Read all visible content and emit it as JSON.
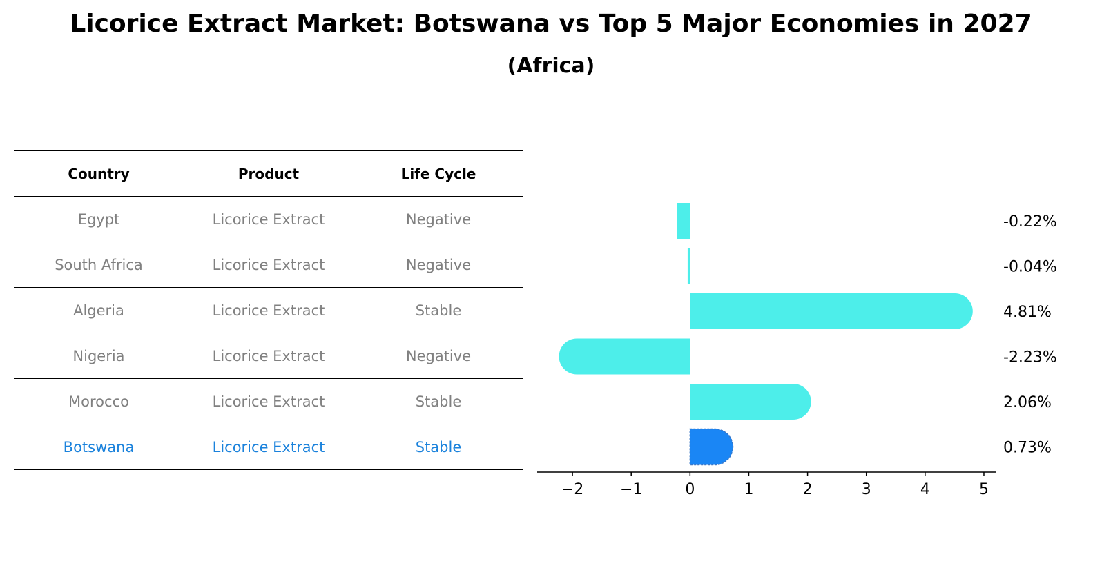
{
  "title": "Licorice Extract Market: Botswana vs Top 5 Major Economies in 2027",
  "subtitle": "(Africa)",
  "table": {
    "headers": [
      "Country",
      "Product",
      "Life Cycle"
    ],
    "rows": [
      [
        "Egypt",
        "Licorice Extract",
        "Negative"
      ],
      [
        "South Africa",
        "Licorice Extract",
        "Negative"
      ],
      [
        "Algeria",
        "Licorice Extract",
        "Stable"
      ],
      [
        "Nigeria",
        "Licorice Extract",
        "Negative"
      ],
      [
        "Morocco",
        "Licorice Extract",
        "Stable"
      ],
      [
        "Botswana",
        "Licorice Extract",
        "Stable"
      ]
    ]
  },
  "chart_data": {
    "type": "bar",
    "orientation": "horizontal",
    "categories": [
      "Egypt",
      "South Africa",
      "Algeria",
      "Nigeria",
      "Morocco",
      "Botswana"
    ],
    "values": [
      -0.22,
      -0.04,
      4.81,
      -2.23,
      2.06,
      0.73
    ],
    "value_labels": [
      "-0.22%",
      "-0.04%",
      "4.81%",
      "-2.23%",
      "2.06%",
      "0.73%"
    ],
    "xlim": [
      -2.6,
      5.2
    ],
    "xticks": [
      -2,
      -1,
      0,
      1,
      2,
      3,
      4,
      5
    ],
    "xtick_labels": [
      "−2",
      "−1",
      "0",
      "1",
      "2",
      "3",
      "4",
      "5"
    ],
    "highlight": "Botswana",
    "colors": {
      "default": "#4deeea",
      "highlight": "#1a86f5"
    },
    "grid": false
  }
}
